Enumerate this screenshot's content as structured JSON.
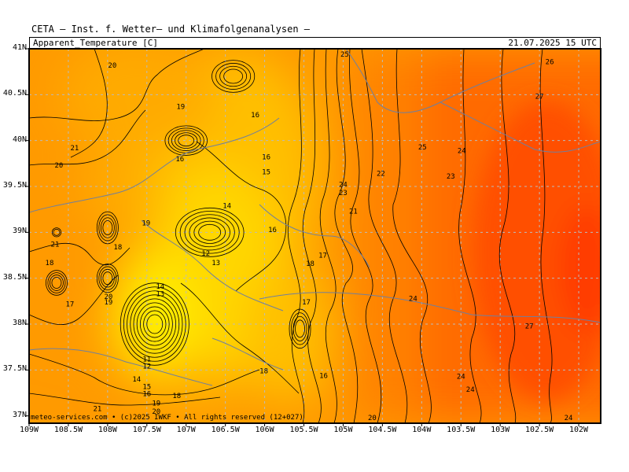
{
  "header": {
    "title": "CETA – Inst. f. Wetter– und Klimafolgenanalysen –"
  },
  "map": {
    "parameter": "Apparent_Temperature [C]",
    "valid_time": "21.07.2025 15 UTC",
    "footer": "meteo-services.com • (c)2025 IWKF • All rights reserved (12+027)",
    "lat_labels": [
      "41N",
      "40.5N",
      "40N",
      "39.5N",
      "39N",
      "38.5N",
      "38N",
      "37.5N",
      "37N"
    ],
    "lon_labels": [
      "109W",
      "108.5W",
      "108W",
      "107.5W",
      "107W",
      "106.5W",
      "106W",
      "105.5W",
      "105W",
      "104.5W",
      "104W",
      "103.5W",
      "103W",
      "102.5W",
      "102W"
    ],
    "colors": {
      "c12": "#ffee00",
      "c14": "#ffd700",
      "c16": "#ffbf00",
      "c18": "#ffaa00",
      "c20": "#ff9a00",
      "c22": "#ff8200",
      "c24": "#ff6a00",
      "c26": "#ff5000",
      "contour": "#000000",
      "border": "#6f7f9f",
      "grid": "#bbbbbb"
    },
    "contour_labels": [
      {
        "t": "20",
        "lon": -107.94,
        "lat": 40.82
      },
      {
        "t": "19",
        "lon": -107.07,
        "lat": 40.37
      },
      {
        "t": "16",
        "lon": -106.12,
        "lat": 40.28
      },
      {
        "t": "21",
        "lon": -108.42,
        "lat": 39.92
      },
      {
        "t": "20",
        "lon": -108.62,
        "lat": 39.73
      },
      {
        "t": "16",
        "lon": -107.08,
        "lat": 39.8
      },
      {
        "t": "16",
        "lon": -105.98,
        "lat": 39.82
      },
      {
        "t": "15",
        "lon": -105.98,
        "lat": 39.66
      },
      {
        "t": "14",
        "lon": -106.48,
        "lat": 39.29
      },
      {
        "t": "19",
        "lon": -107.51,
        "lat": 39.1
      },
      {
        "t": "18",
        "lon": -107.87,
        "lat": 38.84
      },
      {
        "t": "21",
        "lon": -108.67,
        "lat": 38.87
      },
      {
        "t": "18",
        "lon": -108.74,
        "lat": 38.67
      },
      {
        "t": "12",
        "lon": -106.75,
        "lat": 38.77
      },
      {
        "t": "13",
        "lon": -106.62,
        "lat": 38.67
      },
      {
        "t": "16",
        "lon": -105.9,
        "lat": 39.03
      },
      {
        "t": "17",
        "lon": -105.26,
        "lat": 38.75
      },
      {
        "t": "18",
        "lon": -105.42,
        "lat": 38.66
      },
      {
        "t": "14",
        "lon": -107.33,
        "lat": 38.41
      },
      {
        "t": "13",
        "lon": -107.33,
        "lat": 38.33
      },
      {
        "t": "20",
        "lon": -107.99,
        "lat": 38.3
      },
      {
        "t": "19",
        "lon": -107.99,
        "lat": 38.24
      },
      {
        "t": "17",
        "lon": -108.48,
        "lat": 38.22
      },
      {
        "t": "17",
        "lon": -105.47,
        "lat": 38.24
      },
      {
        "t": "11",
        "lon": -107.5,
        "lat": 37.62
      },
      {
        "t": "12",
        "lon": -107.5,
        "lat": 37.54
      },
      {
        "t": "14",
        "lon": -107.63,
        "lat": 37.4
      },
      {
        "t": "15",
        "lon": -107.5,
        "lat": 37.32
      },
      {
        "t": "16",
        "lon": -107.5,
        "lat": 37.24
      },
      {
        "t": "18",
        "lon": -107.12,
        "lat": 37.22
      },
      {
        "t": "19",
        "lon": -107.38,
        "lat": 37.14
      },
      {
        "t": "20",
        "lon": -107.38,
        "lat": 37.05
      },
      {
        "t": "21",
        "lon": -108.13,
        "lat": 37.08
      },
      {
        "t": "18",
        "lon": -106.01,
        "lat": 37.49
      },
      {
        "t": "16",
        "lon": -105.25,
        "lat": 37.44
      },
      {
        "t": "24",
        "lon": -105.0,
        "lat": 39.52
      },
      {
        "t": "23",
        "lon": -105.0,
        "lat": 39.43
      },
      {
        "t": "21",
        "lon": -104.87,
        "lat": 39.23
      },
      {
        "t": "22",
        "lon": -104.52,
        "lat": 39.64
      },
      {
        "t": "25",
        "lon": -104.98,
        "lat": 40.94
      },
      {
        "t": "25",
        "lon": -103.99,
        "lat": 39.93
      },
      {
        "t": "24",
        "lon": -103.49,
        "lat": 39.89
      },
      {
        "t": "23",
        "lon": -103.63,
        "lat": 39.61
      },
      {
        "t": "26",
        "lon": -102.37,
        "lat": 40.86
      },
      {
        "t": "27",
        "lon": -102.5,
        "lat": 40.48
      },
      {
        "t": "24",
        "lon": -104.11,
        "lat": 38.28
      },
      {
        "t": "27",
        "lon": -102.63,
        "lat": 37.98
      },
      {
        "t": "24",
        "lon": -103.5,
        "lat": 37.43
      },
      {
        "t": "24",
        "lon": -103.38,
        "lat": 37.29
      },
      {
        "t": "20",
        "lon": -104.63,
        "lat": 36.98
      },
      {
        "t": "24",
        "lon": -102.13,
        "lat": 36.98
      }
    ]
  }
}
